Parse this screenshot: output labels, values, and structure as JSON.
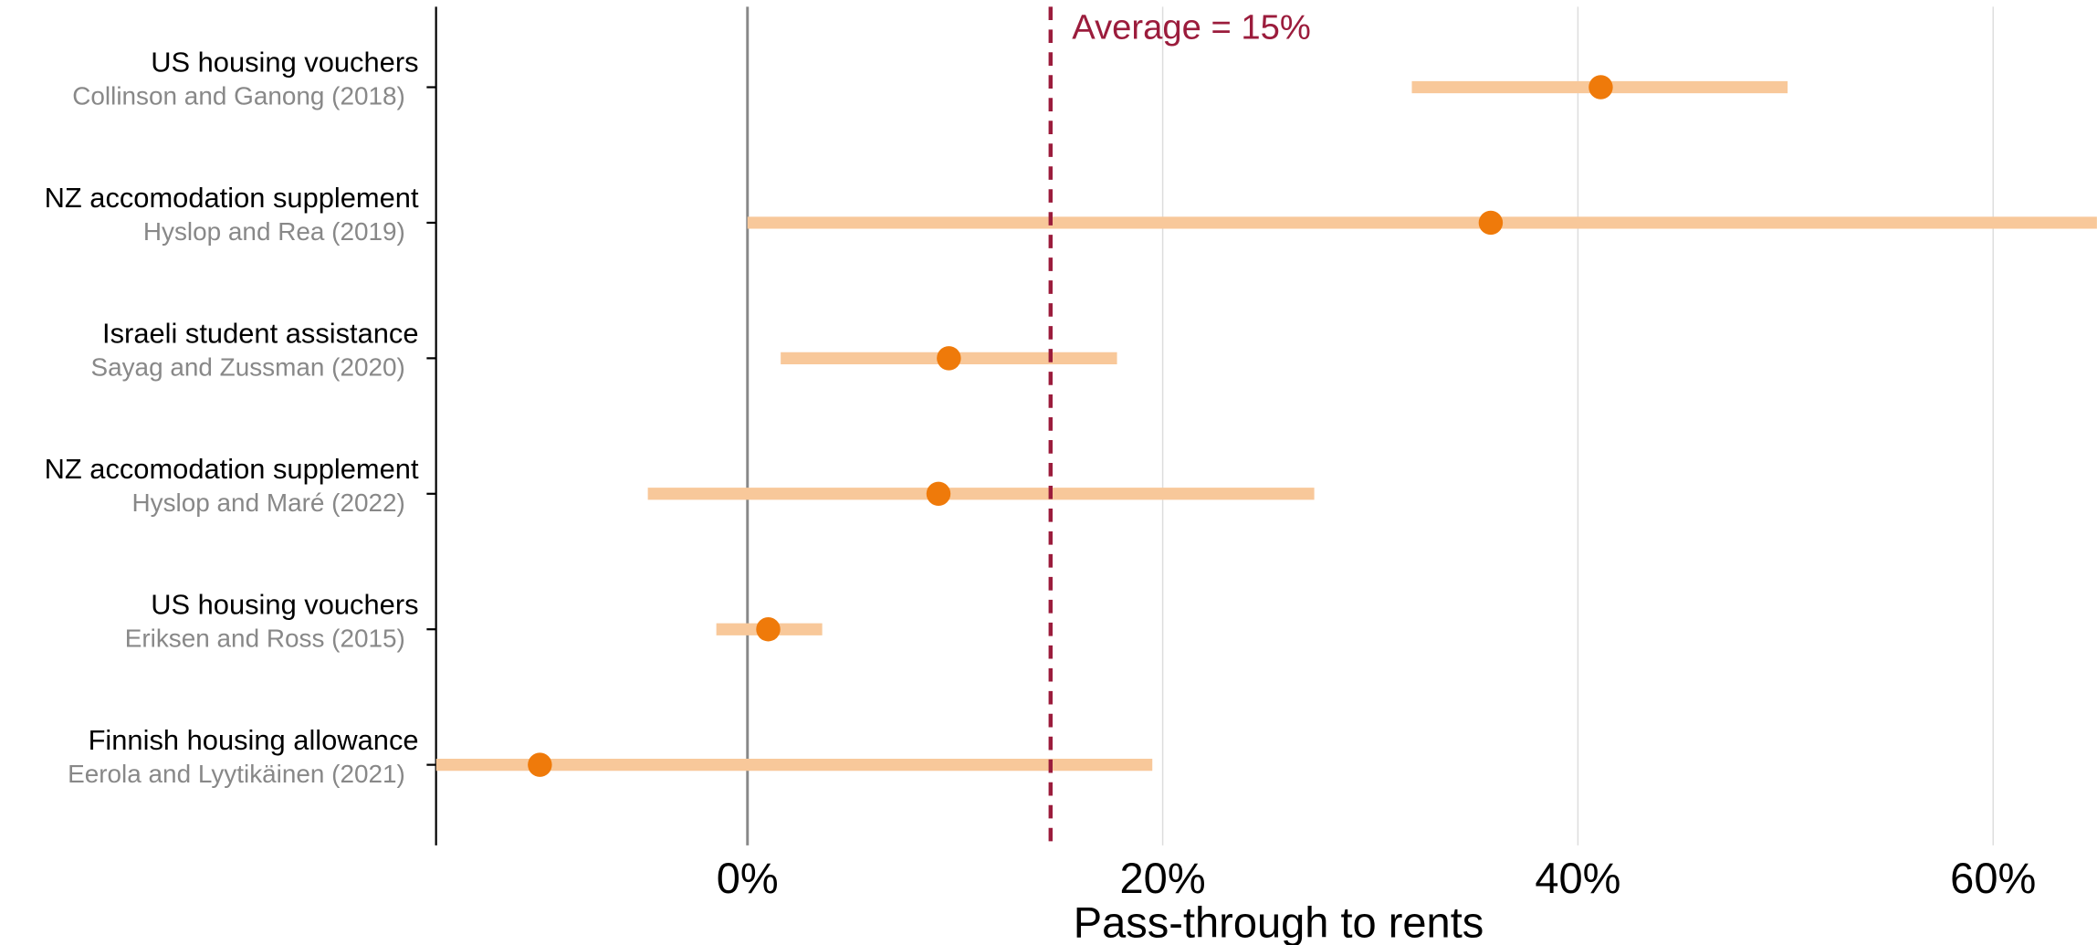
{
  "chart_data": {
    "type": "forest",
    "xlabel": "Pass-through to rents",
    "categories": [
      "US housing vouchers",
      "NZ accomodation supplement",
      "Israeli student assistance",
      "NZ accomodation supplement",
      "US housing vouchers",
      "Finnish housing allowance"
    ],
    "sources": [
      "Collinson and Ganong (2018)",
      "Hyslop and Rea (2019)",
      "Sayag and Zussman (2020)",
      "Hyslop and Maré (2022)",
      "Eriksen and Ross (2015)",
      "Eerola and Lyytikäinen (2021)"
    ],
    "values": [
      41.1,
      35.8,
      9.7,
      9.2,
      1.0,
      -10
    ],
    "lower": [
      32,
      0,
      1.6,
      -4.8,
      -1.5,
      -15
    ],
    "upper": [
      50.1,
      65,
      17.8,
      27.3,
      3.6,
      19.5
    ],
    "color": "#ef7a0a",
    "ci_color": "#f8c89a",
    "average": {
      "value": 14.6,
      "label": "Average = 15%",
      "color": "#9b1c3c"
    },
    "xlim": [
      -15,
      65
    ],
    "xticks": [
      {
        "value": 0,
        "label": "0%"
      },
      {
        "value": 20,
        "label": "20%"
      },
      {
        "value": 40,
        "label": "40%"
      },
      {
        "value": 60,
        "label": "60%"
      }
    ],
    "grid": true
  }
}
